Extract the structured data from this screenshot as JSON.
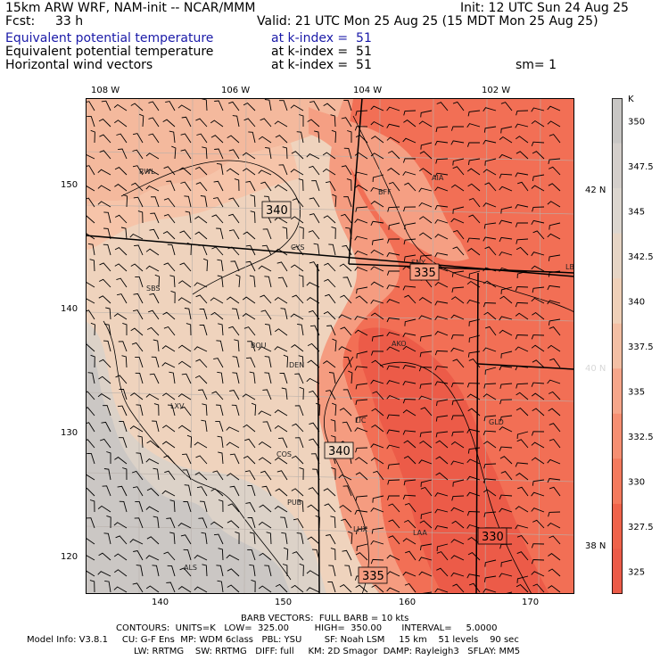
{
  "header": {
    "model": "15km ARW WRF, NAM-init -- NCAR/MMM",
    "init": "Init: 12 UTC Sun 24 Aug 25",
    "fcst_label": "Fcst:",
    "fcst_value": "33 h",
    "valid": "Valid: 21 UTC Mon 25 Aug 25 (15 MDT Mon 25 Aug 25)",
    "fields": [
      {
        "name": "Equivalent potential temperature",
        "level": "at k-index =  51",
        "color": "#1a1aa8"
      },
      {
        "name": "Equivalent potential temperature",
        "level": "at k-index =  51",
        "color": "#000000"
      },
      {
        "name": "Horizontal wind vectors",
        "level": "at k-index =  51",
        "color": "#000000"
      }
    ],
    "smooth": "sm= 1"
  },
  "map": {
    "lon_labels": [
      "108 W",
      "106 W",
      "104 W",
      "102 W"
    ],
    "lat_labels": [
      "42 N",
      "40 N",
      "38 N"
    ],
    "grid_y_ticks": [
      "150",
      "140",
      "130",
      "120"
    ],
    "grid_x_ticks": [
      "140",
      "150",
      "160",
      "170"
    ],
    "contour_labels": [
      "340",
      "335",
      "340",
      "330",
      "335"
    ],
    "stations": [
      "RWL",
      "BFF",
      "AIA",
      "CYS",
      "SNY",
      "SBS",
      "AKO",
      "BOU",
      "DEN",
      "LXV",
      "LIC",
      "GLD",
      "COS",
      "PUB",
      "LHX",
      "LAA",
      "ALS",
      "LBF"
    ]
  },
  "colorbar": {
    "unit": "K",
    "labels": [
      "350",
      "347.5",
      "345",
      "342.5",
      "340",
      "337.5",
      "335",
      "332.5",
      "330",
      "327.5",
      "325"
    ],
    "colors": [
      "#c8c6c4",
      "#d4cfcb",
      "#dcd6cf",
      "#e6d5c5",
      "#efd0b8",
      "#f3bfa4",
      "#f6a68a",
      "#f68f72",
      "#f47a5d",
      "#f0634a",
      "#ec5b48"
    ]
  },
  "footer": {
    "line1": "BARB VECTORS:  FULL BARB = 10 kts",
    "line2": "CONTOURS:  UNITS=K   LOW=  325.00         HIGH=  350.00       INTERVAL=     5.0000",
    "line3": "Model Info: V3.8.1     CU: G-F Ens  MP: WDM 6class   PBL: YSU        SF: Noah LSM     15 km    51 levels    90 sec",
    "line4": "LW: RRTMG    SW: RRTMG   DIFF: full     KM: 2D Smagor  DAMP: Rayleigh3   SFLAY: MM5"
  }
}
